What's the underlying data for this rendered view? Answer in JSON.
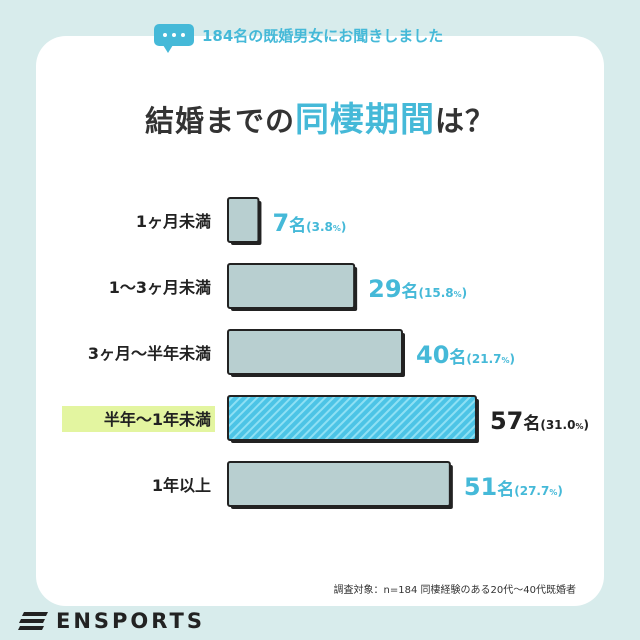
{
  "header": {
    "survey_label": "184名の既婚男女にお聞きしました",
    "title_prefix": "結婚までの",
    "title_highlight": "同棲期間",
    "title_suffix": "は？"
  },
  "chart_data": {
    "type": "bar",
    "orientation": "horizontal",
    "title": "結婚までの同棲期間は？",
    "categories": [
      "1ヶ月未満",
      "1〜3ヶ月未満",
      "3ヶ月〜半年未満",
      "半年〜1年未満",
      "1年以上"
    ],
    "values": [
      7,
      29,
      40,
      57,
      51
    ],
    "percentages": [
      "3.8",
      "15.8",
      "21.7",
      "31.0",
      "27.7"
    ],
    "unit": "名",
    "value_labels": [
      "7名(3.8%)",
      "29名(15.8%)",
      "40名(21.7%)",
      "57名(31.0%)",
      "51名(27.7%)"
    ],
    "highlight_index": 3,
    "colors": {
      "bar": "#b8cfd0",
      "bar_highlight": "#4cc4e6",
      "label": "#45b9d8",
      "label_highlight": "#222222",
      "category_highlight_bg": "#e3f5a0"
    }
  },
  "footnote": "調査対象：n=184 同棲経験のある20代〜40代既婚者",
  "brand": {
    "name": "ENSPORTS"
  },
  "colors": {
    "background": "#d8ecec",
    "accent": "#45b9d8"
  }
}
